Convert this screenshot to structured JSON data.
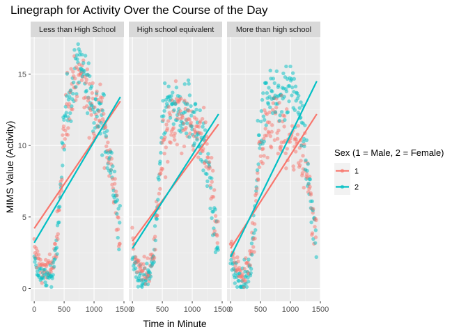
{
  "chart_data": {
    "type": "scatter",
    "title": "Linegraph for Activity Over the Course of the Day",
    "xlabel": "Time in Minute",
    "ylabel": "MIMS Value (Activity)",
    "xlim": [
      -60,
      1500
    ],
    "ylim": [
      -0.9,
      17.6
    ],
    "x_ticks": [
      0,
      500,
      1000,
      1500
    ],
    "y_ticks": [
      0,
      5,
      10,
      15
    ],
    "grid": true,
    "legend": {
      "title": "Sex (1 = Male, 2 = Female)",
      "position": "right",
      "entries": [
        {
          "label": "1",
          "color": "#F8766D"
        },
        {
          "label": "2",
          "color": "#00BFC4"
        }
      ]
    },
    "facets": [
      {
        "label": "Less than High School",
        "series": [
          {
            "name": "1",
            "color": "#F8766D",
            "profile": [
              [
                0,
                3.0
              ],
              [
                60,
                2.0
              ],
              [
                120,
                1.6
              ],
              [
                180,
                1.4
              ],
              [
                240,
                1.3
              ],
              [
                300,
                1.5
              ],
              [
                360,
                3.0
              ],
              [
                420,
                5.8
              ],
              [
                480,
                9.5
              ],
              [
                540,
                12.3
              ],
              [
                600,
                13.3
              ],
              [
                660,
                14.2
              ],
              [
                720,
                15.2
              ],
              [
                780,
                15.3
              ],
              [
                840,
                14.6
              ],
              [
                900,
                14.0
              ],
              [
                960,
                13.2
              ],
              [
                1020,
                12.5
              ],
              [
                1080,
                12.2
              ],
              [
                1140,
                11.8
              ],
              [
                1200,
                11.0
              ],
              [
                1260,
                9.0
              ],
              [
                1320,
                7.6
              ],
              [
                1380,
                5.2
              ],
              [
                1440,
                3.8
              ]
            ],
            "trend": [
              [
                0,
                4.2
              ],
              [
                1440,
                13.1
              ]
            ]
          },
          {
            "name": "2",
            "color": "#00BFC4",
            "profile": [
              [
                0,
                1.9
              ],
              [
                60,
                1.0
              ],
              [
                120,
                0.8
              ],
              [
                180,
                0.6
              ],
              [
                240,
                0.8
              ],
              [
                300,
                1.0
              ],
              [
                360,
                2.5
              ],
              [
                420,
                5.6
              ],
              [
                480,
                9.6
              ],
              [
                540,
                12.4
              ],
              [
                600,
                13.8
              ],
              [
                660,
                15.2
              ],
              [
                720,
                15.8
              ],
              [
                780,
                15.2
              ],
              [
                840,
                14.4
              ],
              [
                900,
                13.6
              ],
              [
                960,
                13.0
              ],
              [
                1020,
                12.6
              ],
              [
                1080,
                12.3
              ],
              [
                1140,
                11.8
              ],
              [
                1200,
                10.6
              ],
              [
                1260,
                8.8
              ],
              [
                1320,
                7.4
              ],
              [
                1380,
                5.6
              ],
              [
                1440,
                3.6
              ]
            ],
            "trend": [
              [
                0,
                3.2
              ],
              [
                1440,
                13.4
              ]
            ]
          }
        ]
      },
      {
        "label": "High school equivalent",
        "series": [
          {
            "name": "1",
            "color": "#F8766D",
            "profile": [
              [
                0,
                3.2
              ],
              [
                60,
                2.0
              ],
              [
                120,
                1.5
              ],
              [
                180,
                1.2
              ],
              [
                240,
                1.1
              ],
              [
                300,
                1.3
              ],
              [
                360,
                2.6
              ],
              [
                420,
                5.4
              ],
              [
                480,
                8.2
              ],
              [
                540,
                9.8
              ],
              [
                600,
                10.6
              ],
              [
                660,
                11.2
              ],
              [
                720,
                11.5
              ],
              [
                780,
                11.6
              ],
              [
                840,
                11.8
              ],
              [
                900,
                11.6
              ],
              [
                960,
                11.4
              ],
              [
                1020,
                11.2
              ],
              [
                1080,
                11.0
              ],
              [
                1140,
                10.6
              ],
              [
                1200,
                10.0
              ],
              [
                1260,
                9.0
              ],
              [
                1320,
                7.2
              ],
              [
                1380,
                4.6
              ],
              [
                1440,
                3.0
              ]
            ],
            "trend": [
              [
                0,
                3.3
              ],
              [
                1440,
                11.5
              ]
            ]
          },
          {
            "name": "2",
            "color": "#00BFC4",
            "profile": [
              [
                0,
                2.0
              ],
              [
                60,
                1.2
              ],
              [
                120,
                0.8
              ],
              [
                180,
                0.7
              ],
              [
                240,
                0.8
              ],
              [
                300,
                1.0
              ],
              [
                360,
                2.4
              ],
              [
                420,
                5.8
              ],
              [
                480,
                10.0
              ],
              [
                540,
                12.4
              ],
              [
                600,
                13.0
              ],
              [
                660,
                13.0
              ],
              [
                720,
                12.6
              ],
              [
                780,
                12.2
              ],
              [
                840,
                12.4
              ],
              [
                900,
                12.6
              ],
              [
                960,
                12.4
              ],
              [
                1020,
                12.0
              ],
              [
                1080,
                11.4
              ],
              [
                1140,
                11.0
              ],
              [
                1200,
                10.0
              ],
              [
                1260,
                8.4
              ],
              [
                1320,
                6.4
              ],
              [
                1380,
                4.2
              ],
              [
                1440,
                2.8
              ]
            ],
            "trend": [
              [
                0,
                2.8
              ],
              [
                1440,
                12.2
              ]
            ]
          }
        ]
      },
      {
        "label": "More than high school",
        "series": [
          {
            "name": "1",
            "color": "#F8766D",
            "profile": [
              [
                0,
                3.0
              ],
              [
                60,
                2.0
              ],
              [
                120,
                1.4
              ],
              [
                180,
                1.1
              ],
              [
                240,
                1.1
              ],
              [
                300,
                1.3
              ],
              [
                360,
                3.0
              ],
              [
                420,
                6.4
              ],
              [
                480,
                9.0
              ],
              [
                540,
                10.4
              ],
              [
                600,
                11.2
              ],
              [
                660,
                11.8
              ],
              [
                720,
                11.9
              ],
              [
                780,
                11.6
              ],
              [
                840,
                11.2
              ],
              [
                900,
                10.8
              ],
              [
                960,
                10.4
              ],
              [
                1020,
                10.0
              ],
              [
                1080,
                10.2
              ],
              [
                1140,
                10.4
              ],
              [
                1200,
                9.6
              ],
              [
                1260,
                8.4
              ],
              [
                1320,
                6.6
              ],
              [
                1380,
                4.8
              ],
              [
                1440,
                3.2
              ]
            ],
            "trend": [
              [
                0,
                2.8
              ],
              [
                1440,
                12.2
              ]
            ]
          },
          {
            "name": "2",
            "color": "#00BFC4",
            "profile": [
              [
                0,
                2.0
              ],
              [
                60,
                1.0
              ],
              [
                120,
                0.8
              ],
              [
                180,
                0.6
              ],
              [
                240,
                0.7
              ],
              [
                300,
                0.9
              ],
              [
                360,
                2.4
              ],
              [
                420,
                6.0
              ],
              [
                480,
                10.4
              ],
              [
                540,
                12.6
              ],
              [
                600,
                13.4
              ],
              [
                660,
                13.6
              ],
              [
                720,
                13.4
              ],
              [
                780,
                13.2
              ],
              [
                840,
                13.2
              ],
              [
                900,
                13.4
              ],
              [
                960,
                13.6
              ],
              [
                1020,
                13.6
              ],
              [
                1080,
                13.2
              ],
              [
                1140,
                12.6
              ],
              [
                1200,
                11.4
              ],
              [
                1260,
                9.4
              ],
              [
                1320,
                7.0
              ],
              [
                1380,
                4.8
              ],
              [
                1440,
                3.0
              ]
            ],
            "trend": [
              [
                0,
                2.2
              ],
              [
                1440,
                14.5
              ]
            ]
          }
        ]
      }
    ]
  }
}
